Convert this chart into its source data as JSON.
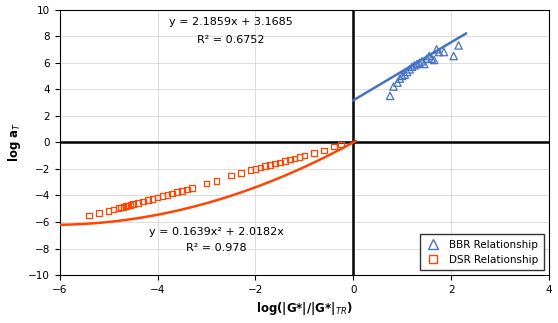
{
  "xlabel": "log(|G*|/|G*|$_{TR}$)",
  "ylabel": "log a$_T$",
  "xlim": [
    -6,
    4
  ],
  "ylim": [
    -10,
    10
  ],
  "xticks": [
    -6,
    -4,
    -2,
    0,
    2,
    4
  ],
  "yticks": [
    -10,
    -8,
    -6,
    -4,
    -2,
    0,
    2,
    4,
    6,
    8,
    10
  ],
  "bbr_x": [
    0.75,
    0.82,
    0.9,
    0.95,
    1.0,
    1.05,
    1.1,
    1.15,
    1.2,
    1.25,
    1.3,
    1.35,
    1.4,
    1.45,
    1.5,
    1.55,
    1.6,
    1.65,
    1.7,
    1.75,
    1.85,
    2.05,
    2.15
  ],
  "bbr_y": [
    3.5,
    4.2,
    4.5,
    4.8,
    5.0,
    5.1,
    5.3,
    5.5,
    5.7,
    5.8,
    5.9,
    6.0,
    6.1,
    5.9,
    6.3,
    6.5,
    6.3,
    6.2,
    7.0,
    6.8,
    6.8,
    6.5,
    7.3
  ],
  "dsr_x": [
    -5.4,
    -5.2,
    -5.0,
    -4.9,
    -4.8,
    -4.75,
    -4.7,
    -4.65,
    -4.6,
    -4.55,
    -4.5,
    -4.4,
    -4.3,
    -4.2,
    -4.1,
    -4.0,
    -3.9,
    -3.8,
    -3.7,
    -3.6,
    -3.5,
    -3.4,
    -3.3,
    -3.0,
    -2.8,
    -2.5,
    -2.3,
    -2.1,
    -2.0,
    -1.9,
    -1.8,
    -1.7,
    -1.6,
    -1.5,
    -1.4,
    -1.3,
    -1.2,
    -1.1,
    -1.0,
    -0.8,
    -0.6,
    -0.4,
    -0.25
  ],
  "dsr_y": [
    -5.5,
    -5.3,
    -5.15,
    -5.05,
    -4.95,
    -4.9,
    -4.85,
    -4.8,
    -4.75,
    -4.7,
    -4.65,
    -4.55,
    -4.45,
    -4.35,
    -4.25,
    -4.15,
    -4.05,
    -3.95,
    -3.85,
    -3.75,
    -3.65,
    -3.55,
    -3.45,
    -3.1,
    -2.9,
    -2.5,
    -2.3,
    -2.1,
    -2.0,
    -1.9,
    -1.8,
    -1.7,
    -1.6,
    -1.5,
    -1.4,
    -1.3,
    -1.2,
    -1.1,
    -1.0,
    -0.8,
    -0.6,
    -0.3,
    -0.15
  ],
  "bbr_color": "#4472C4",
  "dsr_color": "#FF4500",
  "bbr_eq_line1": "y = 2.1859x + 3.1685",
  "bbr_eq_line2": "R² = 0.6752",
  "dsr_eq_line1": "y = 0.1639x² + 2.0182x",
  "dsr_eq_line2": "R² = 0.978",
  "bbr_slope": 2.1859,
  "bbr_intercept": 3.1685,
  "dsr_a": 0.1639,
  "dsr_b": 2.0182,
  "background_color": "#ffffff"
}
